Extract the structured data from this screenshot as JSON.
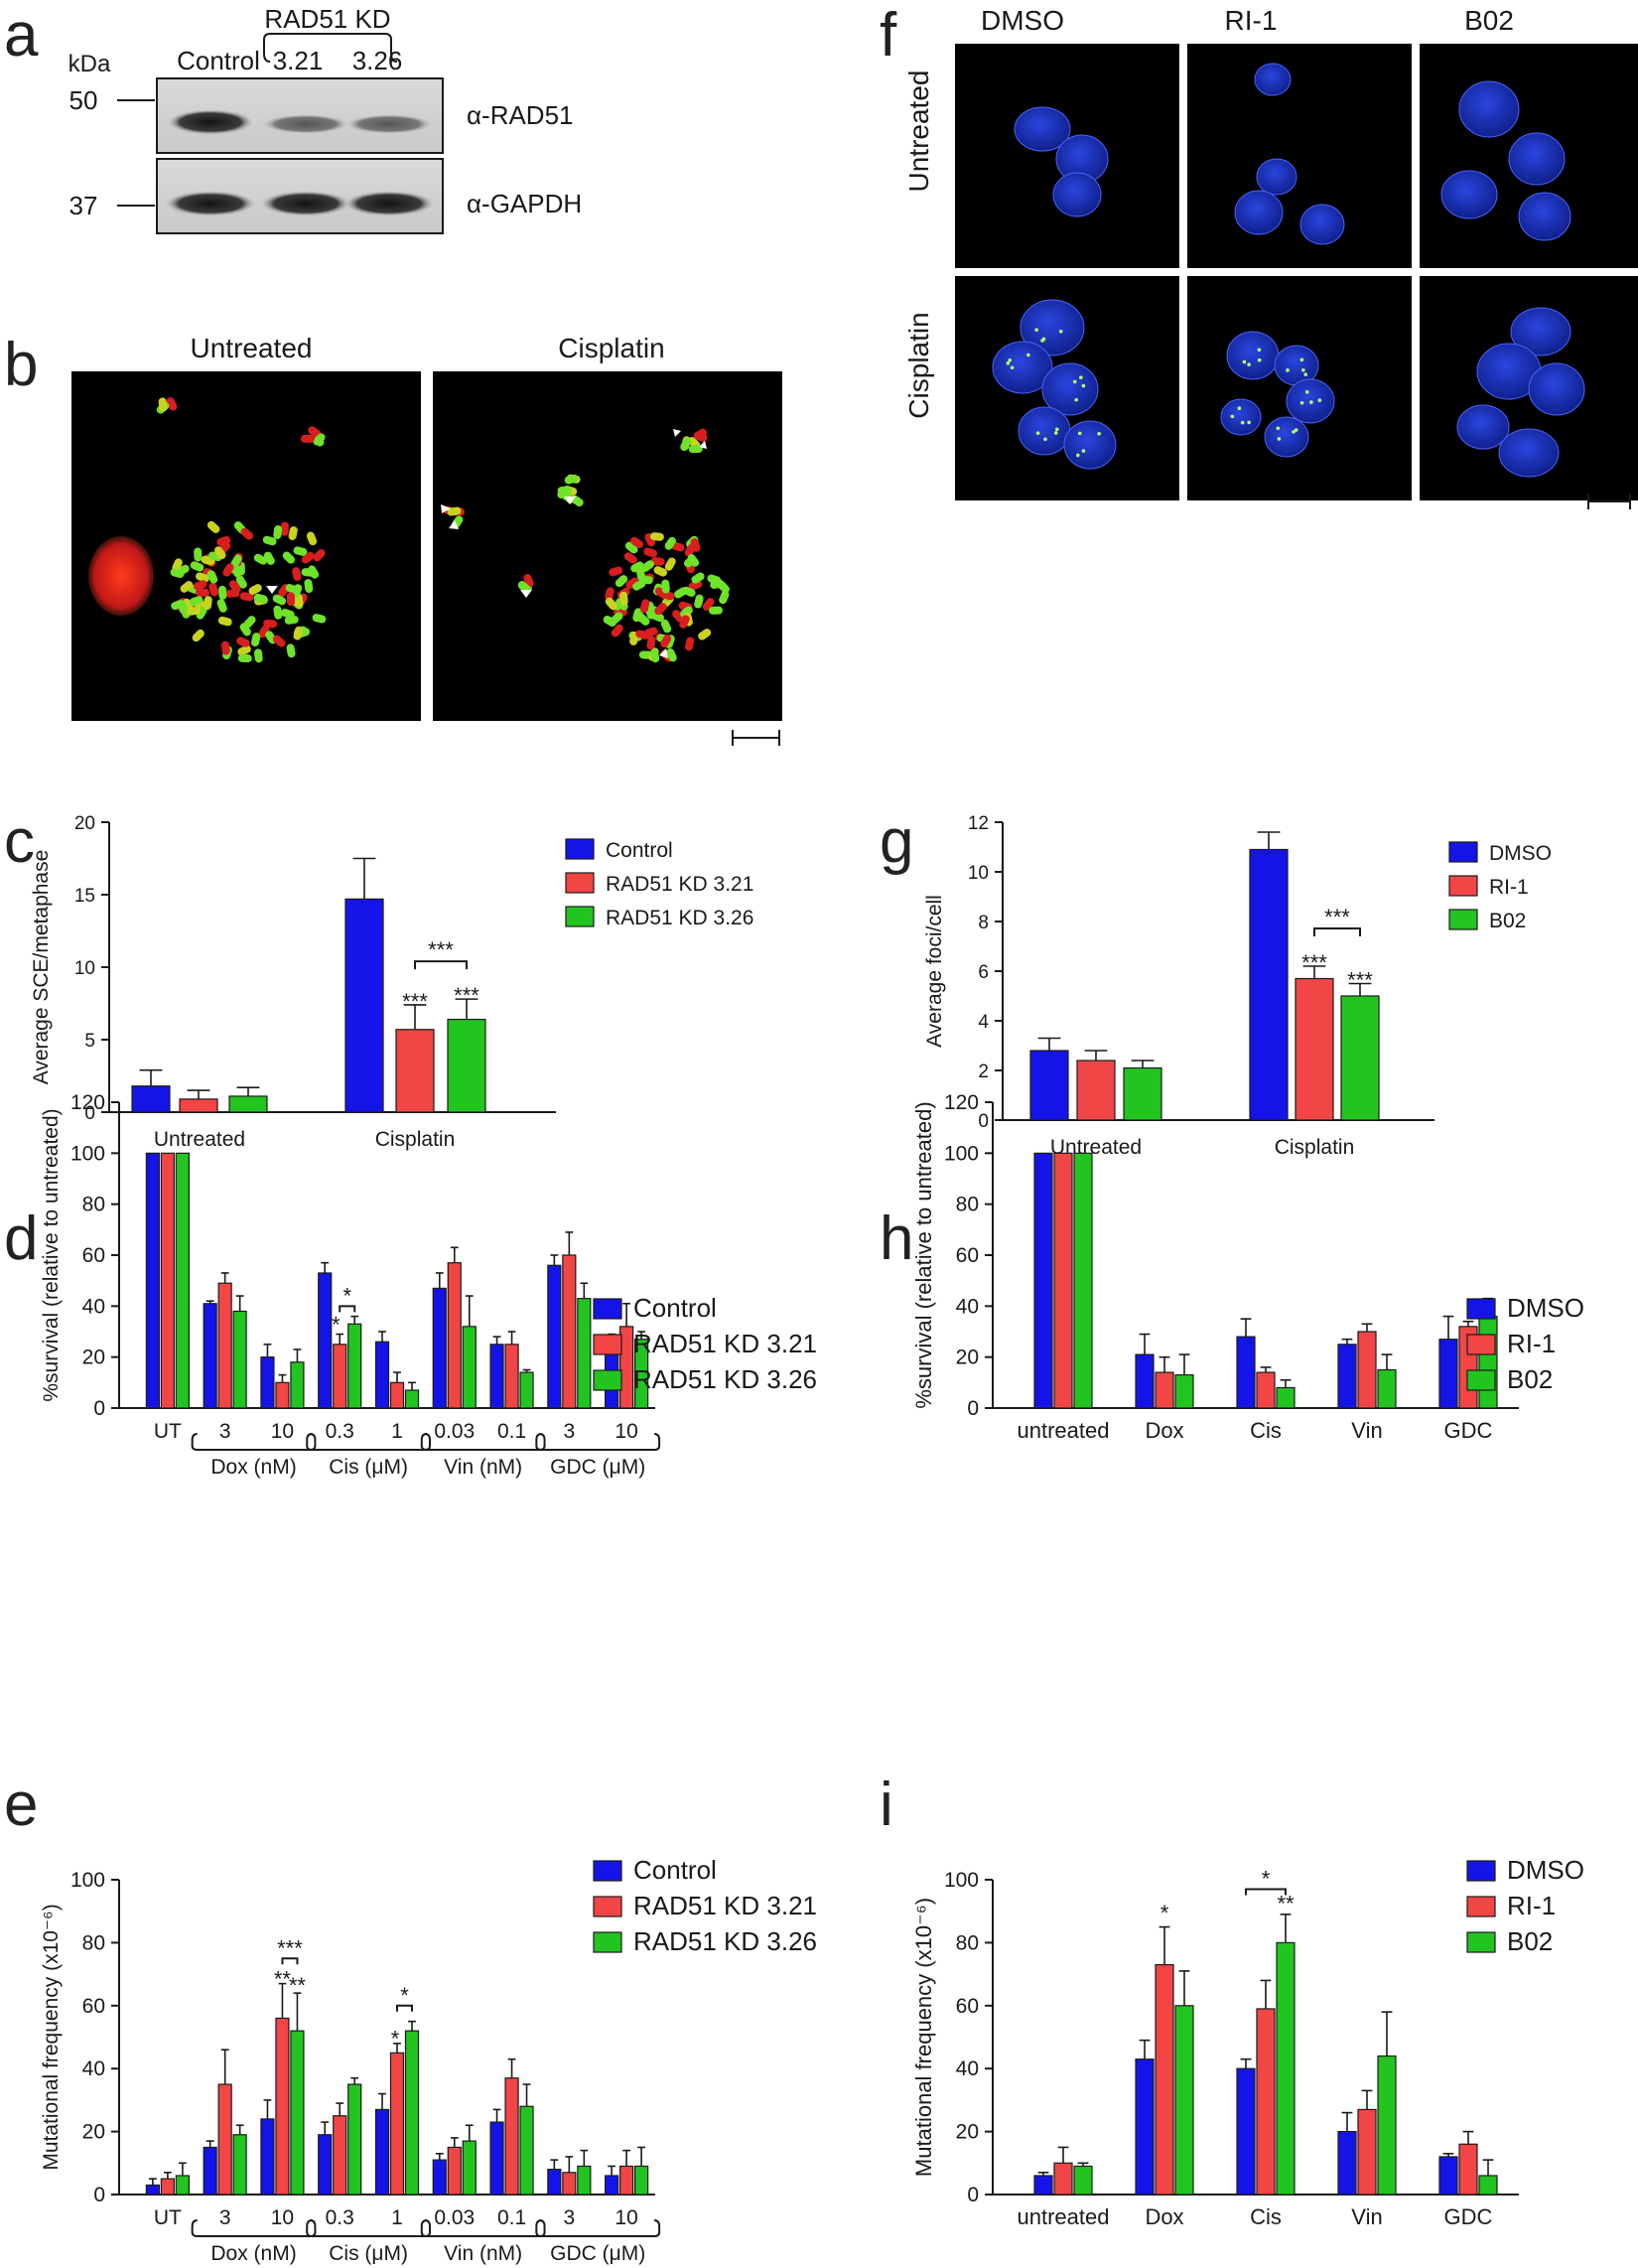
{
  "colors": {
    "blue": "#1414e8",
    "red": "#f24545",
    "green": "#22c41f",
    "ink": "#1a1a1a",
    "micro_bg": "#000000",
    "nuclei": "#1f37c8",
    "chrom_red": "#d81e1e",
    "chrom_green": "#6fe22a",
    "chrom_yellow": "#c9d21f"
  },
  "panel_letters": {
    "a": "a",
    "b": "b",
    "c": "c",
    "d": "d",
    "e": "e",
    "f": "f",
    "g": "g",
    "h": "h",
    "i": "i"
  },
  "blot": {
    "kda_label": "kDa",
    "markers": [
      "50",
      "37"
    ],
    "lanes": [
      "Control",
      "3.21",
      "3.26"
    ],
    "kd_group": "RAD51 KD",
    "bands": [
      "α-RAD51",
      "α-GAPDH"
    ]
  },
  "micro_b": {
    "titles": [
      "Untreated",
      "Cisplatin"
    ]
  },
  "micro_f": {
    "columns": [
      "DMSO",
      "RI-1",
      "B02"
    ],
    "rows": [
      "Untreated",
      "Cisplatin"
    ]
  },
  "chart_data": [
    {
      "id": "c",
      "type": "bar",
      "ylabel": "Average SCE/metaphase",
      "ylim": [
        0,
        20
      ],
      "yticks": [
        0,
        5,
        10,
        15,
        20
      ],
      "categories": [
        "Untreated",
        "Cisplatin"
      ],
      "series": [
        {
          "name": "Control",
          "values": [
            1.8,
            14.7
          ],
          "errors": [
            1.1,
            2.8
          ]
        },
        {
          "name": "RAD51 KD 3.21",
          "values": [
            0.9,
            5.7
          ],
          "errors": [
            0.6,
            1.7
          ]
        },
        {
          "name": "RAD51 KD 3.26",
          "values": [
            1.1,
            6.4
          ],
          "errors": [
            0.6,
            1.4
          ]
        }
      ],
      "annotations": [
        "***",
        "***",
        "***"
      ]
    },
    {
      "id": "g",
      "type": "bar",
      "ylabel": "Average foci/cell",
      "ylim": [
        0,
        12
      ],
      "yticks": [
        0,
        2,
        4,
        6,
        8,
        10,
        12
      ],
      "categories": [
        "Untreated",
        "Cisplatin"
      ],
      "series": [
        {
          "name": "DMSO",
          "values": [
            2.8,
            10.9
          ],
          "errors": [
            0.5,
            0.7
          ]
        },
        {
          "name": "RI-1",
          "values": [
            2.4,
            5.7
          ],
          "errors": [
            0.4,
            0.5
          ]
        },
        {
          "name": "B02",
          "values": [
            2.1,
            5.0
          ],
          "errors": [
            0.3,
            0.5
          ]
        }
      ],
      "annotations": [
        "***",
        "***",
        "***"
      ]
    },
    {
      "id": "d",
      "type": "bar",
      "ylabel": "%survival (relative to untreated)",
      "ylim": [
        0,
        120
      ],
      "yticks": [
        0,
        20,
        40,
        60,
        80,
        100,
        120
      ],
      "categories": [
        "UT",
        "3",
        "10",
        "0.3",
        "1",
        "0.03",
        "0.1",
        "3",
        "10"
      ],
      "groups": [
        "Dox (nM)",
        "Cis (μM)",
        "Vin (nM)",
        "GDC (μM)"
      ],
      "series": [
        {
          "name": "Control",
          "values": [
            100,
            41,
            20,
            53,
            26,
            47,
            25,
            56,
            24
          ],
          "errors": [
            0,
            1,
            5,
            4,
            4,
            6,
            3,
            4,
            5
          ]
        },
        {
          "name": "RAD51 KD 3.21",
          "values": [
            100,
            49,
            10,
            25,
            10,
            57,
            25,
            60,
            32
          ],
          "errors": [
            0,
            4,
            3,
            4,
            4,
            6,
            5,
            9,
            9
          ]
        },
        {
          "name": "RAD51 KD 3.26",
          "values": [
            100,
            38,
            18,
            33,
            7,
            32,
            14,
            43,
            27
          ],
          "errors": [
            0,
            6,
            5,
            3,
            3,
            12,
            1,
            6,
            3
          ]
        }
      ],
      "annotations": [
        "*",
        "*"
      ]
    },
    {
      "id": "h",
      "type": "bar",
      "ylabel": "%survival (relative to untreated)",
      "ylim": [
        0,
        120
      ],
      "yticks": [
        0,
        20,
        40,
        60,
        80,
        100,
        120
      ],
      "categories": [
        "untreated",
        "Dox",
        "Cis",
        "Vin",
        "GDC"
      ],
      "series": [
        {
          "name": "DMSO",
          "values": [
            100,
            21,
            28,
            25,
            27
          ],
          "errors": [
            0,
            8,
            7,
            2,
            9
          ]
        },
        {
          "name": "RI-1",
          "values": [
            100,
            14,
            14,
            30,
            32
          ],
          "errors": [
            0,
            6,
            2,
            3,
            2
          ]
        },
        {
          "name": "B02",
          "values": [
            100,
            13,
            8,
            15,
            36
          ],
          "errors": [
            0,
            8,
            3,
            6,
            7
          ]
        }
      ]
    },
    {
      "id": "e",
      "type": "bar",
      "ylabel": "Mutational frequency (x10⁻⁶)",
      "ylim": [
        0,
        100
      ],
      "yticks": [
        0,
        20,
        40,
        60,
        80,
        100
      ],
      "categories": [
        "UT",
        "3",
        "10",
        "0.3",
        "1",
        "0.03",
        "0.1",
        "3",
        "10"
      ],
      "groups": [
        "Dox (nM)",
        "Cis (μM)",
        "Vin (nM)",
        "GDC (μM)"
      ],
      "series": [
        {
          "name": "Control",
          "values": [
            3,
            15,
            24,
            19,
            27,
            11,
            23,
            8,
            6
          ],
          "errors": [
            2,
            2,
            6,
            4,
            5,
            2,
            4,
            3,
            3
          ]
        },
        {
          "name": "RAD51 KD 3.21",
          "values": [
            5,
            35,
            56,
            25,
            45,
            15,
            37,
            7,
            9
          ],
          "errors": [
            2,
            11,
            11,
            4,
            3,
            3,
            6,
            5,
            5
          ]
        },
        {
          "name": "RAD51 KD 3.26",
          "values": [
            6,
            19,
            52,
            35,
            52,
            17,
            28,
            9,
            9
          ],
          "errors": [
            4,
            3,
            12,
            2,
            3,
            5,
            7,
            5,
            6
          ]
        }
      ],
      "annotations": [
        "***",
        "**",
        "**",
        "*",
        "*"
      ]
    },
    {
      "id": "i",
      "type": "bar",
      "ylabel": "Mutational frequency (x10⁻⁶)",
      "ylim": [
        0,
        100
      ],
      "yticks": [
        0,
        20,
        40,
        60,
        80,
        100
      ],
      "categories": [
        "untreated",
        "Dox",
        "Cis",
        "Vin",
        "GDC"
      ],
      "series": [
        {
          "name": "DMSO",
          "values": [
            6,
            43,
            40,
            20,
            12
          ],
          "errors": [
            1,
            6,
            3,
            6,
            1
          ]
        },
        {
          "name": "RI-1",
          "values": [
            10,
            73,
            59,
            27,
            16
          ],
          "errors": [
            5,
            12,
            9,
            6,
            4
          ]
        },
        {
          "name": "B02",
          "values": [
            9,
            60,
            80,
            44,
            6
          ],
          "errors": [
            1,
            11,
            9,
            14,
            5
          ]
        }
      ],
      "annotations": [
        "*",
        "*",
        "**"
      ]
    }
  ]
}
